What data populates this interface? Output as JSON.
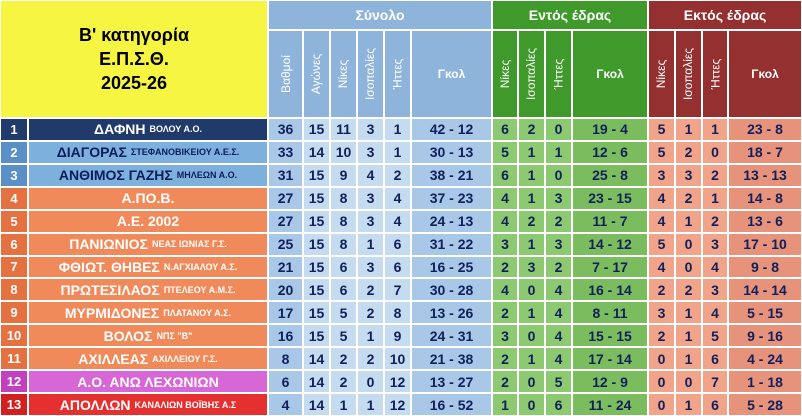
{
  "header": {
    "title": [
      "Β' κατηγορία",
      "Ε.Π.Σ.Θ.",
      "2025-26"
    ],
    "groups": [
      "Σύνολο",
      "Εντός έδρας",
      "Εκτός έδρας"
    ],
    "columns": {
      "total": [
        "Βαθμοί",
        "Αγώνες",
        "Νίκες",
        "Ισοπαλίες",
        "Ήττες",
        "Γκολ"
      ],
      "home": [
        "Νίκες",
        "Ισοπαλίες",
        "Ήττες",
        "Γκολ"
      ],
      "away": [
        "Νίκες",
        "Ισοπαλίες",
        "Ήττες",
        "Γκολ"
      ]
    }
  },
  "table": {
    "rows": [
      {
        "rank": 1,
        "team": "ΔΑΦΝΗ",
        "town": "ΒΟΛΟΥ Α.Ο.",
        "total": [
          36,
          15,
          11,
          3,
          1,
          42,
          12
        ],
        "home": [
          6,
          2,
          0,
          19,
          4
        ],
        "away": [
          5,
          1,
          1,
          23,
          8
        ]
      },
      {
        "rank": 2,
        "team": "ΔΙΑΓΟΡΑΣ",
        "town": "ΣΤΕΦΑΝΟΒΙΚΕΙΟΥ Α.Ε.Σ.",
        "total": [
          33,
          14,
          10,
          3,
          1,
          30,
          13
        ],
        "home": [
          5,
          1,
          1,
          12,
          6
        ],
        "away": [
          5,
          2,
          0,
          18,
          7
        ]
      },
      {
        "rank": 3,
        "team": "ΑΝΘΙΜΟΣ ΓΑΖΗΣ",
        "town": "ΜΗΛΕΩΝ Α.Ο.",
        "total": [
          31,
          15,
          9,
          4,
          2,
          38,
          21
        ],
        "home": [
          6,
          1,
          0,
          25,
          8
        ],
        "away": [
          3,
          3,
          2,
          13,
          13
        ]
      },
      {
        "rank": 4,
        "team": "Α.ΠΟ.Β.",
        "town": "",
        "total": [
          27,
          15,
          8,
          3,
          4,
          37,
          23
        ],
        "home": [
          4,
          1,
          3,
          23,
          15
        ],
        "away": [
          4,
          2,
          1,
          14,
          8
        ]
      },
      {
        "rank": 5,
        "team": "Α.Ε. 2002",
        "town": "",
        "total": [
          27,
          15,
          8,
          3,
          4,
          24,
          13
        ],
        "home": [
          4,
          2,
          2,
          11,
          7
        ],
        "away": [
          4,
          1,
          2,
          13,
          6
        ]
      },
      {
        "rank": 6,
        "team": "ΠΑΝΙΩΝΙΟΣ",
        "town": "ΝΕΑΣ ΙΩΝΙΑΣ Γ.Σ.",
        "total": [
          25,
          15,
          8,
          1,
          6,
          31,
          22
        ],
        "home": [
          3,
          1,
          3,
          14,
          12
        ],
        "away": [
          5,
          0,
          3,
          17,
          10
        ]
      },
      {
        "rank": 7,
        "team": "ΦΘΙΩΤ. ΘΗΒΕΣ",
        "town": "Ν.ΑΓΧΙΑΛΟΥ Α.Σ.",
        "total": [
          21,
          15,
          6,
          3,
          6,
          16,
          25
        ],
        "home": [
          2,
          3,
          2,
          7,
          17
        ],
        "away": [
          4,
          0,
          4,
          9,
          8
        ]
      },
      {
        "rank": 8,
        "team": "ΠΡΩΤΕΣΙΛΑΟΣ",
        "town": "ΠΤΕΛΕΟΥ Α.Μ.Σ.",
        "total": [
          20,
          15,
          6,
          2,
          7,
          30,
          28
        ],
        "home": [
          4,
          0,
          4,
          16,
          14
        ],
        "away": [
          2,
          2,
          3,
          14,
          14
        ]
      },
      {
        "rank": 9,
        "team": "ΜΥΡΜΙΔΟΝΕΣ",
        "town": "ΠΛΑΤΑΝΟΥ Α.Σ.",
        "total": [
          17,
          15,
          5,
          2,
          8,
          13,
          26
        ],
        "home": [
          2,
          1,
          4,
          8,
          11
        ],
        "away": [
          3,
          1,
          4,
          5,
          15
        ]
      },
      {
        "rank": 10,
        "team": "ΒΟΛΟΣ",
        "town": "ΝΠΣ \"Β\"",
        "total": [
          16,
          15,
          5,
          1,
          9,
          24,
          31
        ],
        "home": [
          3,
          0,
          4,
          15,
          15
        ],
        "away": [
          2,
          1,
          5,
          9,
          16
        ]
      },
      {
        "rank": 11,
        "team": "ΑΧΙΛΛΕΑΣ",
        "town": "ΑΧΙΛΛΕΙΟΥ Γ.Σ.",
        "total": [
          8,
          14,
          2,
          2,
          10,
          21,
          38
        ],
        "home": [
          2,
          1,
          4,
          17,
          14
        ],
        "away": [
          0,
          1,
          6,
          4,
          24
        ]
      },
      {
        "rank": 12,
        "team": "Α.Ο. ΑΝΩ ΛΕΧΩΝΙΩΝ",
        "town": "",
        "total": [
          6,
          14,
          2,
          0,
          12,
          13,
          27
        ],
        "home": [
          2,
          0,
          5,
          12,
          9
        ],
        "away": [
          0,
          0,
          7,
          1,
          18
        ]
      },
      {
        "rank": 13,
        "team": "ΑΠΟΛΛΩΝ",
        "town": "ΚΑΝΑΛΙΩΝ ΒΟΪΒΗΣ Α.Σ",
        "total": [
          4,
          14,
          1,
          1,
          12,
          16,
          52
        ],
        "home": [
          1,
          0,
          6,
          11,
          24
        ],
        "away": [
          0,
          1,
          6,
          5,
          28
        ]
      }
    ]
  }
}
